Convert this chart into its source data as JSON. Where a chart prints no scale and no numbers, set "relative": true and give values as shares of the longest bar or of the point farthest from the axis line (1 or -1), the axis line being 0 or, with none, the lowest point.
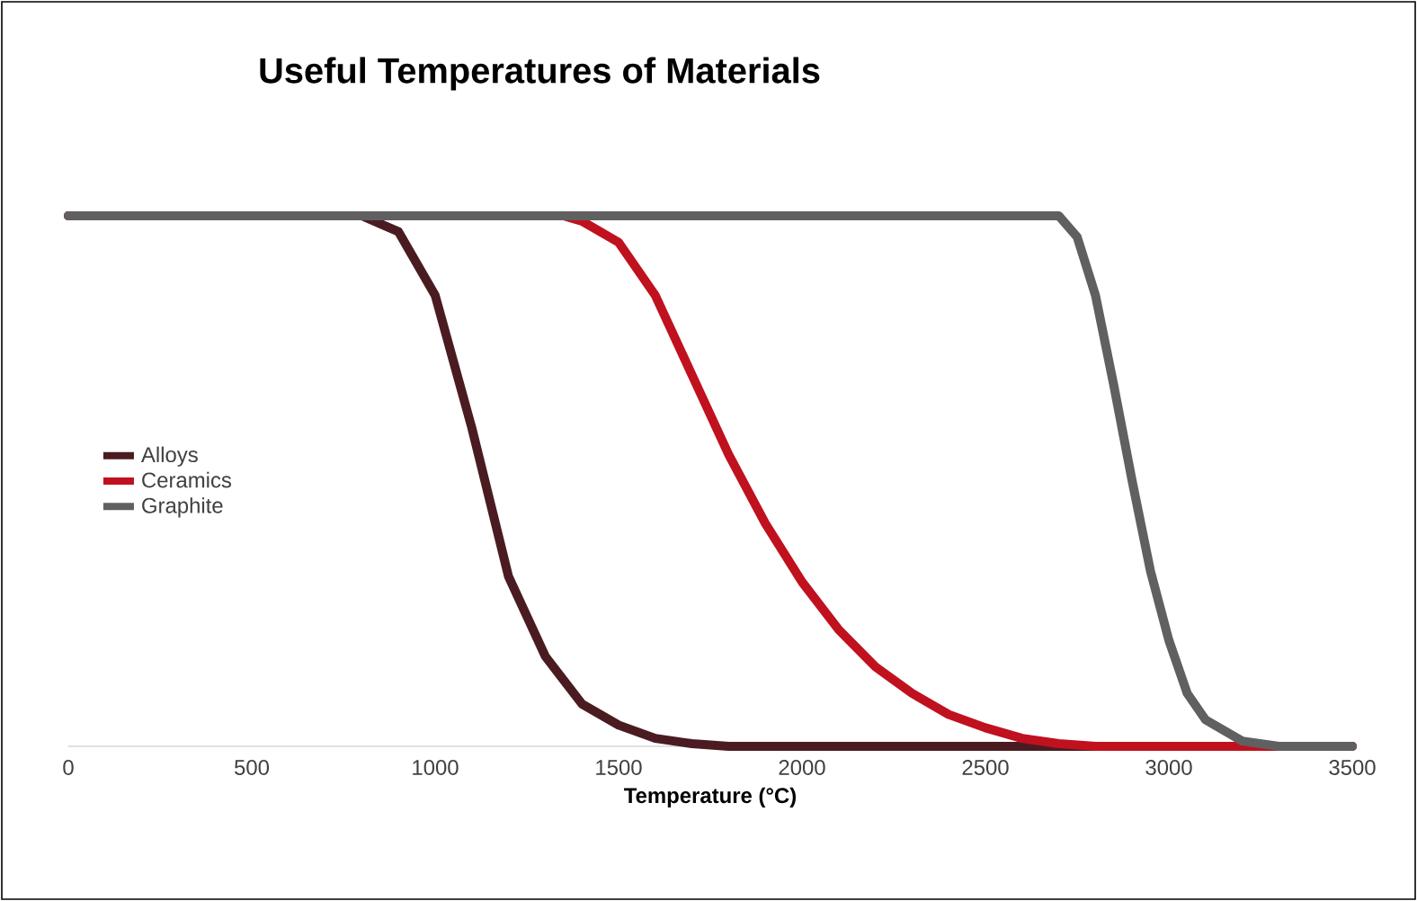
{
  "chart_data": {
    "type": "line",
    "title": "Useful Temperatures of Materials",
    "xlabel": "Temperature (°C)",
    "relative": true,
    "xlim": [
      0,
      3500
    ],
    "xticks": [
      0,
      500,
      1000,
      1500,
      2000,
      2500,
      3000,
      3500
    ],
    "legend": "left",
    "grid": false,
    "marker": "none",
    "series": [
      {
        "name": "Alloys",
        "color": "#4a1c22",
        "x": [
          0,
          800,
          900,
          1000,
          1100,
          1200,
          1300,
          1400,
          1500,
          1600,
          1700,
          1800,
          3500
        ],
        "values": [
          1,
          1,
          0.97,
          0.85,
          0.6,
          0.32,
          0.17,
          0.08,
          0.04,
          0.015,
          0.005,
          0,
          0
        ]
      },
      {
        "name": "Ceramics",
        "color": "#c0111f",
        "x": [
          0,
          1350,
          1400,
          1500,
          1600,
          1700,
          1800,
          1900,
          2000,
          2100,
          2200,
          2300,
          2400,
          2500,
          2600,
          2700,
          2800,
          3500
        ],
        "values": [
          1,
          1,
          0.99,
          0.95,
          0.85,
          0.7,
          0.55,
          0.42,
          0.31,
          0.22,
          0.15,
          0.1,
          0.06,
          0.035,
          0.015,
          0.005,
          0,
          0
        ]
      },
      {
        "name": "Graphite",
        "color": "#606060",
        "x": [
          0,
          2700,
          2750,
          2800,
          2850,
          2900,
          2950,
          3000,
          3050,
          3100,
          3200,
          3300,
          3500
        ],
        "values": [
          1,
          1,
          0.96,
          0.85,
          0.68,
          0.5,
          0.33,
          0.2,
          0.1,
          0.05,
          0.01,
          0,
          0
        ]
      }
    ]
  }
}
